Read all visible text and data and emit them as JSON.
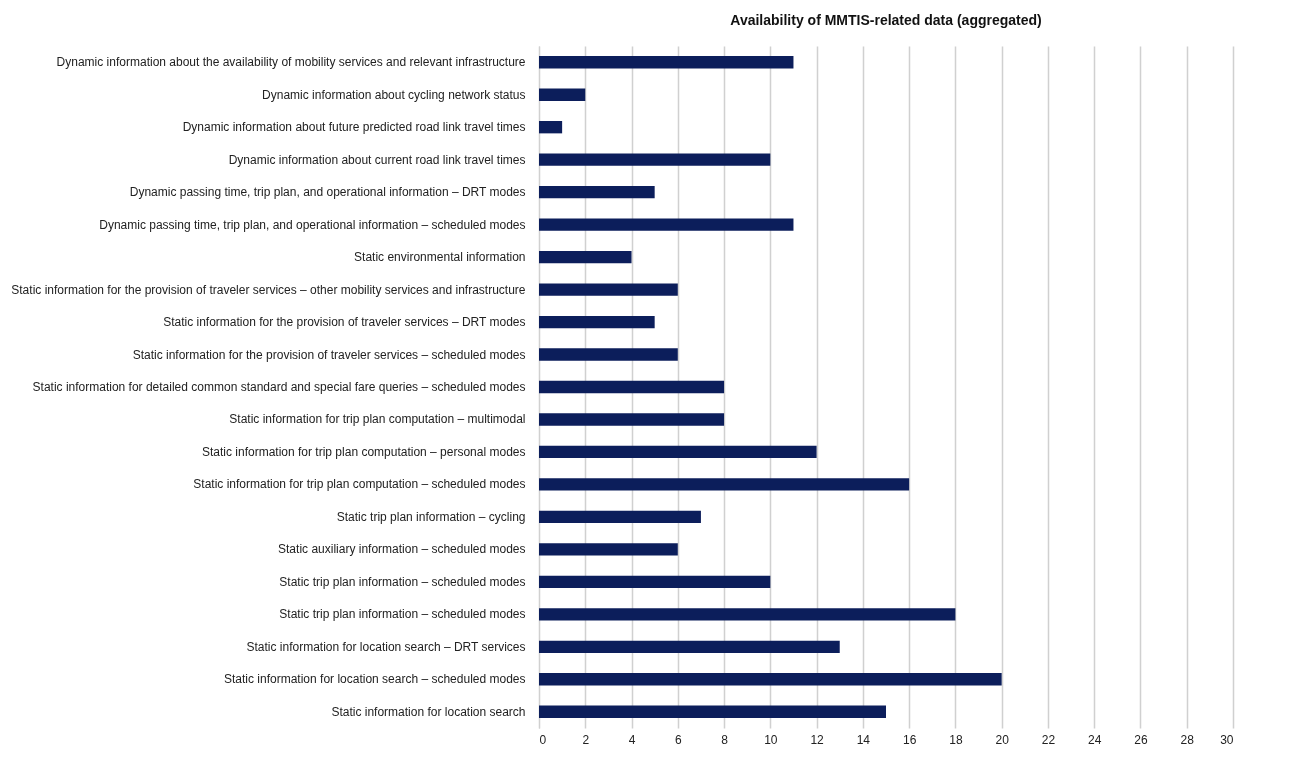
{
  "chart_data": {
    "type": "bar",
    "orientation": "horizontal",
    "title": "Availability of MMTIS-related data (aggregated)",
    "categories": [
      "Dynamic information about the availability of mobility services and relevant infrastructure",
      "Dynamic information about cycling network status",
      "Dynamic information about future predicted road link travel times",
      "Dynamic information about current road link travel times",
      "Dynamic passing time, trip plan, and operational information – DRT modes",
      "Dynamic passing time, trip plan, and operational information – scheduled modes",
      "Static environmental information",
      "Static information for the provision of traveler services – other mobility services and infrastructure",
      "Static information for the provision of traveler services – DRT modes",
      "Static information for the provision of traveler services – scheduled modes",
      "Static information for detailed common standard and special fare queries – scheduled modes",
      "Static information for trip plan computation – multimodal",
      "Static information for trip plan computation – personal modes",
      "Static information for trip plan computation – scheduled modes",
      "Static trip plan information – cycling",
      "Static auxiliary information – scheduled modes",
      "Static trip plan information – scheduled modes",
      "Static trip plan information – scheduled modes",
      "Static information for location search – DRT services",
      "Static information for location search – scheduled modes",
      "Static information for location search"
    ],
    "values": [
      11,
      2,
      1,
      10,
      5,
      11,
      4,
      6,
      5,
      6,
      8,
      8,
      12,
      16,
      7,
      6,
      10,
      18,
      13,
      20,
      15
    ],
    "color": "#0c1e5b",
    "xlim": [
      0,
      30
    ],
    "xticks": [
      0,
      2,
      4,
      6,
      8,
      10,
      12,
      14,
      16,
      18,
      20,
      22,
      24,
      26,
      28,
      30
    ],
    "grid": "x"
  }
}
